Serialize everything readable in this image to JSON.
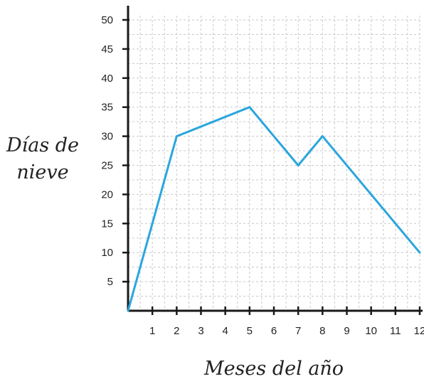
{
  "chart_data": {
    "type": "line",
    "title": "",
    "xlabel": "Meses del año",
    "ylabel_lines": [
      "Días de",
      "nieve"
    ],
    "x_ticks": [
      1,
      2,
      3,
      4,
      5,
      6,
      7,
      8,
      9,
      10,
      11,
      12
    ],
    "y_ticks": [
      5,
      10,
      15,
      20,
      25,
      30,
      35,
      40,
      45,
      50
    ],
    "xlim": [
      0,
      12
    ],
    "ylim": [
      0,
      50
    ],
    "grid": true,
    "series": [
      {
        "x": [
          0,
          2,
          5,
          7,
          8,
          12
        ],
        "y": [
          0,
          30,
          35,
          25,
          30,
          10
        ]
      }
    ],
    "colors": {
      "line": "#2aa6dc",
      "axis": "#1a1a1a",
      "grid": "#c8c8c8"
    }
  }
}
